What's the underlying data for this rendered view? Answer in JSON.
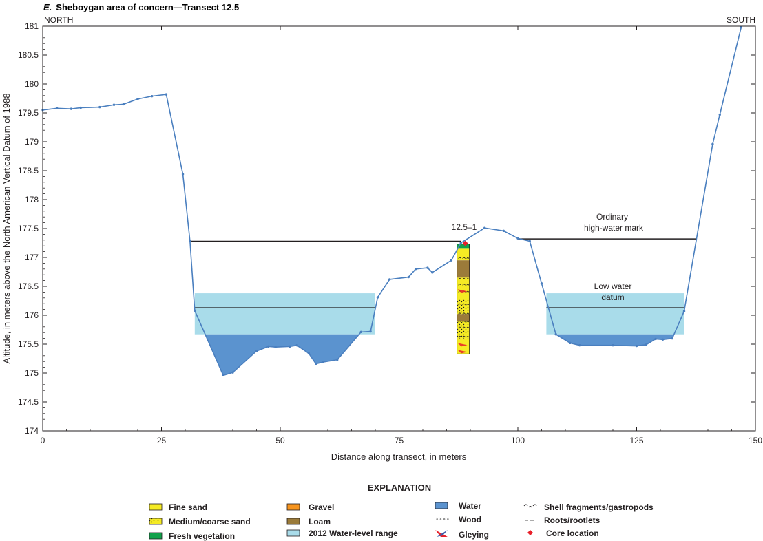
{
  "title_letter": "E.",
  "title_text": "Sheboygan area of concern—Transect 12.5",
  "north_label": "NORTH",
  "south_label": "SOUTH",
  "colors": {
    "profile": "#4a7fbf",
    "water": "#5b93cf",
    "water_range": "#a9dcea",
    "fine_sand": "#f5eb24",
    "gravel": "#f7941d",
    "loam": "#9b7b3a",
    "fresh_vegetation": "#12a14b",
    "core_location": "#e8202a",
    "gleying_red": "#e8202a",
    "gleying_blue": "#3b5ba9"
  },
  "annotations": {
    "ohw_line1": "Ordinary",
    "ohw_line2": "high-water mark",
    "lwd_line1": "Low water",
    "lwd_line2": "datum",
    "core_label": "12.5–1"
  },
  "legend": {
    "heading": "EXPLANATION",
    "items": [
      {
        "label": "Fine sand",
        "symbol": "fine-sand"
      },
      {
        "label": "Medium/coarse sand",
        "symbol": "medium-coarse-sand"
      },
      {
        "label": "Fresh vegetation",
        "symbol": "fresh-vegetation"
      },
      {
        "label": "Gravel",
        "symbol": "gravel"
      },
      {
        "label": "Loam",
        "symbol": "loam"
      },
      {
        "label": "2012 Water-level range",
        "symbol": "water-level-range"
      },
      {
        "label": "Water",
        "symbol": "water"
      },
      {
        "label": "Wood",
        "symbol": "wood"
      },
      {
        "label": "Gleying",
        "symbol": "gleying"
      },
      {
        "label": "Shell fragments/gastropods",
        "symbol": "shell-fragments"
      },
      {
        "label": "Roots/rootlets",
        "symbol": "roots"
      },
      {
        "label": "Core location",
        "symbol": "core-location"
      }
    ]
  },
  "chart_data": {
    "type": "line",
    "xlabel": "Distance along transect, in meters",
    "ylabel": "Altitude, in meters above the North American Vertical Datum of 1988",
    "xlim": [
      0,
      150
    ],
    "ylim": [
      174,
      181
    ],
    "x_ticks": [
      "0",
      "25",
      "50",
      "75",
      "100",
      "125",
      "150"
    ],
    "y_ticks": [
      "174",
      "174.5",
      "175",
      "175.5",
      "176",
      "176.5",
      "177",
      "177.5",
      "178",
      "178.5",
      "179",
      "179.5",
      "180",
      "180.5",
      "181"
    ],
    "grid": false,
    "series": [
      {
        "x": [
          0,
          3,
          6,
          8,
          12,
          15,
          17,
          20,
          23,
          26,
          29.5,
          31,
          32,
          38,
          40,
          45,
          47.5,
          49,
          52,
          53.5,
          56,
          57.5,
          59,
          62,
          67,
          69,
          70.5,
          73,
          77,
          78.5,
          81,
          82,
          86,
          88,
          93,
          97,
          100,
          102.5,
          105,
          108,
          111,
          113,
          120,
          125,
          127,
          129,
          130.5,
          132.5,
          135,
          141,
          142.5,
          147
        ],
        "y": [
          179.55,
          179.58,
          179.57,
          179.59,
          179.6,
          179.64,
          179.65,
          179.74,
          179.79,
          179.82,
          178.44,
          177.28,
          176.08,
          174.96,
          175.01,
          175.38,
          175.46,
          175.45,
          175.46,
          175.48,
          175.34,
          175.16,
          175.19,
          175.23,
          175.71,
          175.72,
          176.31,
          176.62,
          176.66,
          176.8,
          176.82,
          176.74,
          176.95,
          177.25,
          177.51,
          177.46,
          177.33,
          177.28,
          176.55,
          175.67,
          175.52,
          175.48,
          175.48,
          175.47,
          175.49,
          175.59,
          175.58,
          175.6,
          176.07,
          178.96,
          179.47,
          180.98
        ]
      }
    ],
    "ordinary_high_water_mark": {
      "y": 177.28,
      "y_south": 177.32,
      "segments": [
        [
          31,
          88
        ],
        [
          100,
          137.5
        ]
      ]
    },
    "low_water_datum": {
      "y": 176.13,
      "segments": [
        [
          32,
          70
        ],
        [
          106,
          135
        ]
      ]
    },
    "water_level_range_2012": {
      "low": 175.67,
      "high": 176.38,
      "segments": [
        [
          32,
          70
        ],
        [
          106,
          135
        ]
      ]
    },
    "core": {
      "label": "12.5–1",
      "x": 88.5,
      "top": 177.23,
      "bottom": 175.33,
      "layers": [
        {
          "from": 177.23,
          "to": 177.15,
          "material": "fresh-vegetation"
        },
        {
          "from": 177.15,
          "to": 176.95,
          "material": "fine-sand"
        },
        {
          "from": 176.95,
          "to": 176.65,
          "material": "loam"
        },
        {
          "from": 176.65,
          "to": 176.28,
          "material": "fine-sand"
        },
        {
          "from": 176.28,
          "to": 176.02,
          "material": "medium-coarse-sand"
        },
        {
          "from": 176.02,
          "to": 175.9,
          "material": "loam"
        },
        {
          "from": 175.9,
          "to": 175.6,
          "material": "medium-coarse-sand"
        },
        {
          "from": 175.6,
          "to": 175.33,
          "material": "fine-sand"
        }
      ]
    }
  }
}
